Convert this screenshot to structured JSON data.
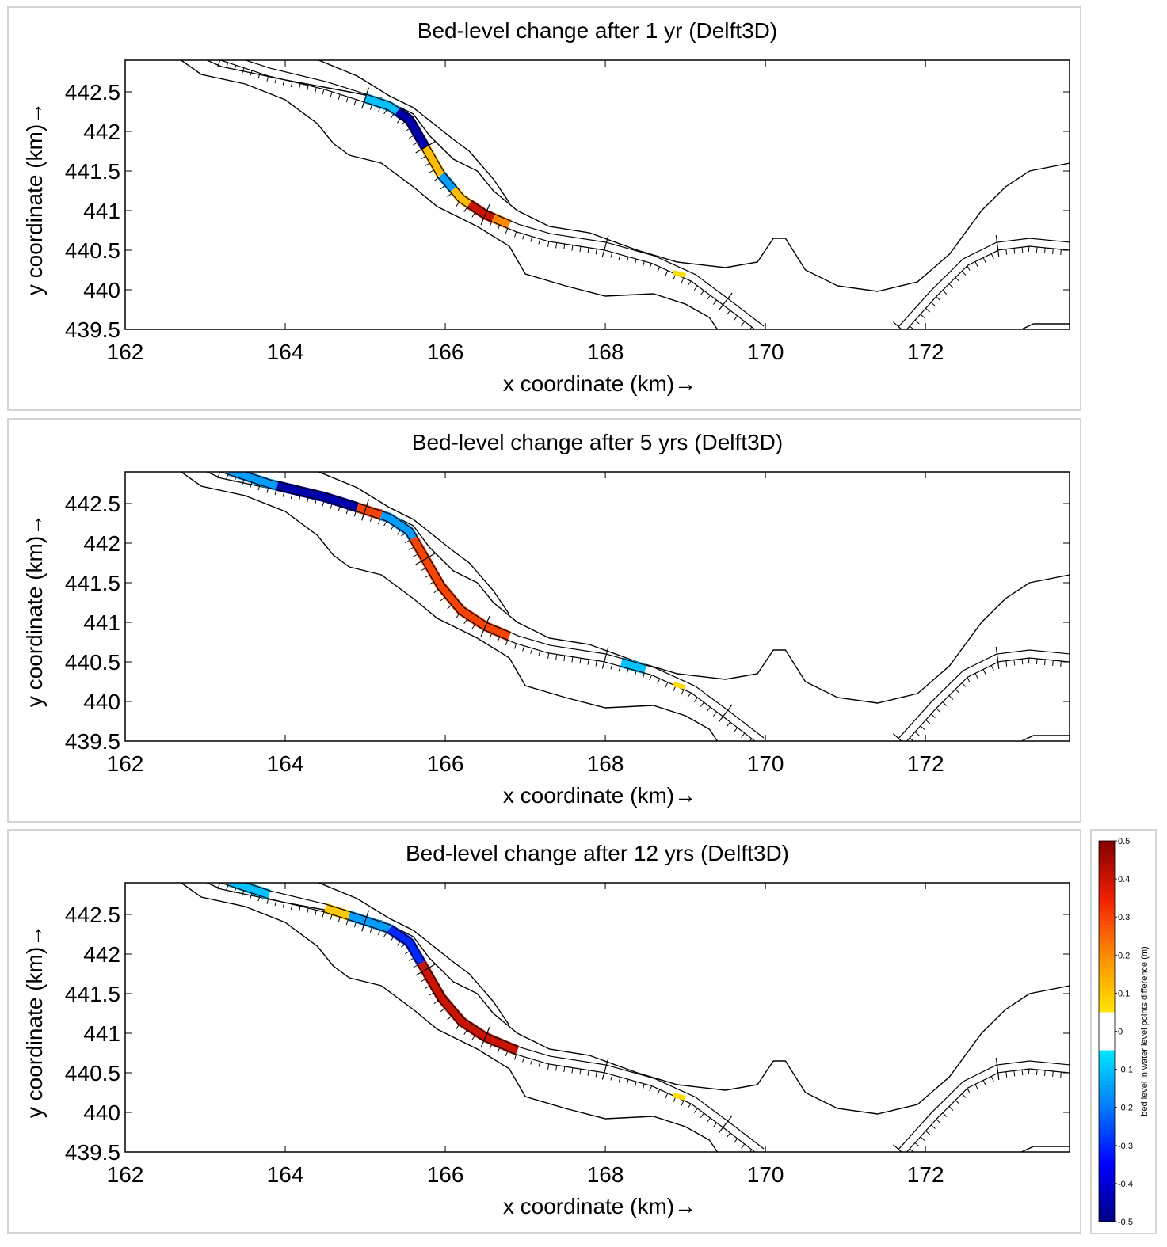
{
  "chart_data": [
    {
      "type": "heatmap",
      "title": "Bed-level change after 1 yr (Delft3D)",
      "xlabel": "x coordinate (km)→",
      "ylabel": "y coordinate (km)→",
      "xlim": [
        162,
        173.8
      ],
      "ylim": [
        439.5,
        442.9
      ],
      "xticks": [
        "162",
        "164",
        "166",
        "168",
        "170",
        "172"
      ],
      "yticks": [
        "442.5",
        "442",
        "441.5",
        "441",
        "440.5",
        "440",
        "439.5"
      ],
      "segments": [
        {
          "x": [
            165.0,
            165.4
          ],
          "value": -0.1
        },
        {
          "x": [
            165.4,
            165.75
          ],
          "value": -0.45
        },
        {
          "x": [
            165.75,
            165.95
          ],
          "value": 0.12
        },
        {
          "x": [
            165.95,
            166.1
          ],
          "value": -0.15
        },
        {
          "x": [
            166.1,
            166.3
          ],
          "value": 0.12
        },
        {
          "x": [
            166.3,
            166.6
          ],
          "value": 0.4
        },
        {
          "x": [
            166.6,
            166.8
          ],
          "value": 0.2
        }
      ]
    },
    {
      "type": "heatmap",
      "title": "Bed-level change after 5 yrs (Delft3D)",
      "xlabel": "x coordinate (km)→",
      "ylabel": "y coordinate (km)→",
      "xlim": [
        162,
        173.8
      ],
      "ylim": [
        439.5,
        442.9
      ],
      "xticks": [
        "162",
        "164",
        "166",
        "168",
        "170",
        "172"
      ],
      "yticks": [
        "442.5",
        "442",
        "441.5",
        "441",
        "440.5",
        "440",
        "439.5"
      ],
      "segments": [
        {
          "x": [
            163.3,
            163.9
          ],
          "value": -0.15
        },
        {
          "x": [
            163.9,
            164.9
          ],
          "value": -0.45
        },
        {
          "x": [
            164.9,
            165.2
          ],
          "value": 0.3
        },
        {
          "x": [
            165.2,
            165.6
          ],
          "value": -0.15
        },
        {
          "x": [
            165.6,
            166.8
          ],
          "value": 0.3
        },
        {
          "x": [
            168.2,
            168.5
          ],
          "value": -0.1
        }
      ]
    },
    {
      "type": "heatmap",
      "title": "Bed-level change after 12 yrs (Delft3D)",
      "xlabel": "x coordinate (km)→",
      "ylabel": "y coordinate (km)→",
      "xlim": [
        162,
        173.8
      ],
      "ylim": [
        439.5,
        442.9
      ],
      "xticks": [
        "162",
        "164",
        "166",
        "168",
        "170",
        "172"
      ],
      "yticks": [
        "442.5",
        "442",
        "441.5",
        "441",
        "440.5",
        "440",
        "439.5"
      ],
      "segments": [
        {
          "x": [
            163.3,
            163.8
          ],
          "value": -0.1
        },
        {
          "x": [
            164.5,
            164.8
          ],
          "value": 0.1
        },
        {
          "x": [
            164.8,
            165.3
          ],
          "value": -0.15
        },
        {
          "x": [
            165.3,
            165.7
          ],
          "value": -0.3
        },
        {
          "x": [
            165.7,
            166.9
          ],
          "value": 0.4
        }
      ]
    }
  ],
  "colorbar": {
    "label": "bed level in water level points difference (m)",
    "ticks": [
      "0.5",
      "0.4",
      "0.3",
      "0.2",
      "0.1",
      "0",
      "-0.1",
      "-0.2",
      "-0.3",
      "-0.4",
      "-0.5"
    ],
    "range": [
      -0.5,
      0.5
    ]
  },
  "colors": {
    "outline": "#000000",
    "panel_border": "#d4d4d4"
  }
}
